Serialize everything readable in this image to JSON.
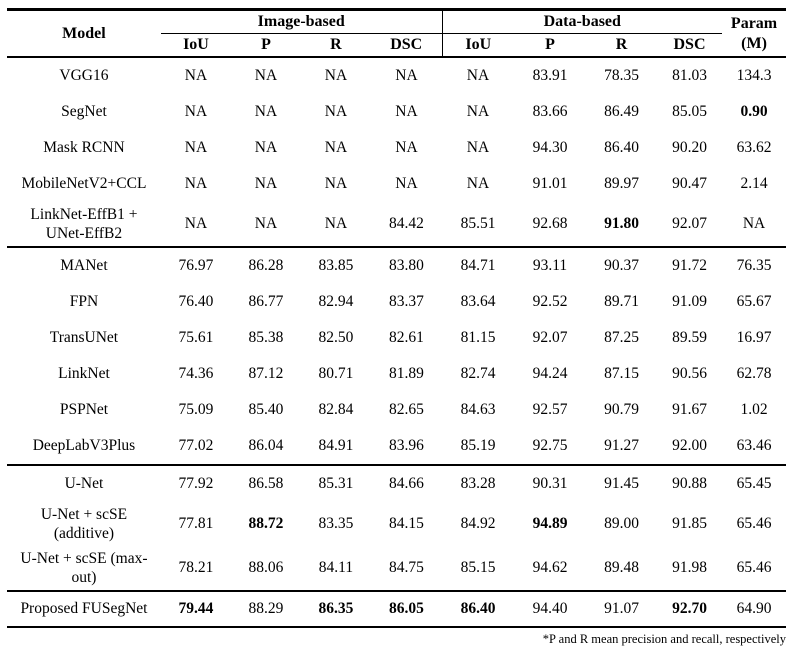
{
  "colors": {
    "text": "#000000",
    "background": "#ffffff",
    "rule": "#000000"
  },
  "table": {
    "header": {
      "model_label": "Model",
      "group_image_label": "Image-based",
      "group_data_label": "Data-based",
      "metric_labels": [
        "IoU",
        "P",
        "R",
        "DSC"
      ],
      "param_label_line1": "Param",
      "param_label_line2": "(M)"
    },
    "rows": [
      {
        "model_lines": [
          "VGG16"
        ],
        "values": [
          "NA",
          "NA",
          "NA",
          "NA",
          "NA",
          "83.91",
          "78.35",
          "81.03",
          "134.3"
        ],
        "bold": []
      },
      {
        "model_lines": [
          "SegNet"
        ],
        "values": [
          "NA",
          "NA",
          "NA",
          "NA",
          "NA",
          "83.66",
          "86.49",
          "85.05",
          "0.90"
        ],
        "bold": [
          8
        ]
      },
      {
        "model_lines": [
          "Mask RCNN"
        ],
        "values": [
          "NA",
          "NA",
          "NA",
          "NA",
          "NA",
          "94.30",
          "86.40",
          "90.20",
          "63.62"
        ],
        "bold": []
      },
      {
        "model_lines": [
          "MobileNetV2+CCL"
        ],
        "values": [
          "NA",
          "NA",
          "NA",
          "NA",
          "NA",
          "91.01",
          "89.97",
          "90.47",
          "2.14"
        ],
        "bold": []
      },
      {
        "model_lines": [
          "LinkNet-EffB1 +",
          "UNet-EffB2"
        ],
        "values": [
          "NA",
          "NA",
          "NA",
          "84.42",
          "85.51",
          "92.68",
          "91.80",
          "92.07",
          "NA"
        ],
        "bold": [
          6
        ],
        "group_end": true
      },
      {
        "model_lines": [
          "MANet"
        ],
        "values": [
          "76.97",
          "86.28",
          "83.85",
          "83.80",
          "84.71",
          "93.11",
          "90.37",
          "91.72",
          "76.35"
        ],
        "bold": []
      },
      {
        "model_lines": [
          "FPN"
        ],
        "values": [
          "76.40",
          "86.77",
          "82.94",
          "83.37",
          "83.64",
          "92.52",
          "89.71",
          "91.09",
          "65.67"
        ],
        "bold": []
      },
      {
        "model_lines": [
          "TransUNet"
        ],
        "values": [
          "75.61",
          "85.38",
          "82.50",
          "82.61",
          "81.15",
          "92.07",
          "87.25",
          "89.59",
          "16.97"
        ],
        "bold": []
      },
      {
        "model_lines": [
          "LinkNet"
        ],
        "values": [
          "74.36",
          "87.12",
          "80.71",
          "81.89",
          "82.74",
          "94.24",
          "87.15",
          "90.56",
          "62.78"
        ],
        "bold": []
      },
      {
        "model_lines": [
          "PSPNet"
        ],
        "values": [
          "75.09",
          "85.40",
          "82.84",
          "82.65",
          "84.63",
          "92.57",
          "90.79",
          "91.67",
          "1.02"
        ],
        "bold": []
      },
      {
        "model_lines": [
          "DeepLabV3Plus"
        ],
        "values": [
          "77.02",
          "86.04",
          "84.91",
          "83.96",
          "85.19",
          "92.75",
          "91.27",
          "92.00",
          "63.46"
        ],
        "bold": [],
        "group_end": true
      },
      {
        "model_lines": [
          "U-Net"
        ],
        "values": [
          "77.92",
          "86.58",
          "85.31",
          "84.66",
          "83.28",
          "90.31",
          "91.45",
          "90.88",
          "65.45"
        ],
        "bold": []
      },
      {
        "model_lines": [
          "U-Net + scSE",
          "(additive)"
        ],
        "values": [
          "77.81",
          "88.72",
          "83.35",
          "84.15",
          "84.92",
          "94.89",
          "89.00",
          "91.85",
          "65.46"
        ],
        "bold": [
          1,
          5
        ]
      },
      {
        "model_lines": [
          "U-Net + scSE (max-",
          "out)"
        ],
        "values": [
          "78.21",
          "88.06",
          "84.11",
          "84.75",
          "85.15",
          "94.62",
          "89.48",
          "91.98",
          "65.46"
        ],
        "bold": [],
        "group_end": true
      },
      {
        "model_lines": [
          "Proposed FUSegNet"
        ],
        "values": [
          "79.44",
          "88.29",
          "86.35",
          "86.05",
          "86.40",
          "94.40",
          "91.07",
          "92.70",
          "64.90"
        ],
        "bold": [
          0,
          2,
          3,
          4,
          7
        ],
        "final": true
      }
    ],
    "footnote": "*P and R mean precision and recall, respectively"
  }
}
